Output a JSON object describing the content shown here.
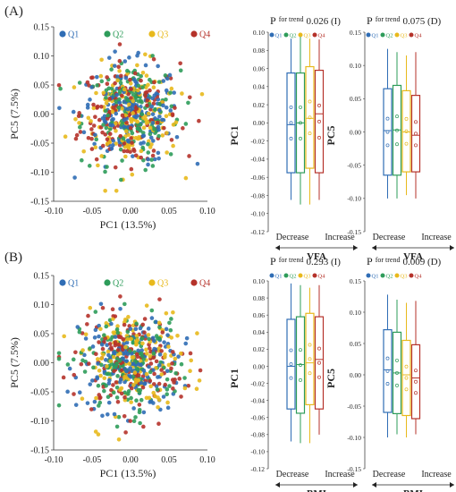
{
  "colors": {
    "Q1": "#2f6db5",
    "Q2": "#2e9c5a",
    "Q3": "#e8b91c",
    "Q4": "#b5322a"
  },
  "chart_data": [
    {
      "panel_label": "(A)",
      "type": "scatter",
      "xlabel": "PC1 (13.5%)",
      "ylabel": "PC5 (7.5%)",
      "xlim": [
        -0.1,
        0.1
      ],
      "ylim": [
        -0.15,
        0.15
      ],
      "xticks": [
        "-0.10",
        "-0.05",
        "0.00",
        "0.05",
        "0.10"
      ],
      "yticks": [
        "0.15",
        "0.10",
        "0.05",
        "0.00",
        "-0.05",
        "-0.10",
        "-0.15"
      ],
      "legend": [
        "Q1",
        "Q2",
        "Q3",
        "Q4"
      ],
      "legend_position": "top",
      "spread": {
        "sx": 0.032,
        "sy": 0.043
      }
    },
    {
      "panel_label": "",
      "type": "box",
      "ylabel": "PC1",
      "xlabel": "VFA",
      "group_labels": [
        "Decrease",
        "Increase"
      ],
      "p_prefix": "P",
      "p_super": "for trend",
      "p_value": "0.026 (I)",
      "legend": [
        "Q1",
        "Q2",
        "Q3",
        "Q4"
      ],
      "ylim": [
        -0.12,
        0.1
      ],
      "yticks": [
        "0.10",
        "0.08",
        "0.06",
        "0.04",
        "0.02",
        "0.00",
        "-0.02",
        "-0.04",
        "-0.06",
        "-0.08",
        "-0.10",
        "-0.12"
      ],
      "boxes": [
        {
          "name": "Q1",
          "whisker_low": -0.085,
          "q1": -0.055,
          "median": -0.002,
          "q3": 0.055,
          "whisker_high": 0.093
        },
        {
          "name": "Q2",
          "whisker_low": -0.09,
          "q1": -0.055,
          "median": 0.0,
          "q3": 0.055,
          "whisker_high": 0.095
        },
        {
          "name": "Q3",
          "whisker_low": -0.09,
          "q1": -0.05,
          "median": 0.005,
          "q3": 0.062,
          "whisker_high": 0.093
        },
        {
          "name": "Q4",
          "whisker_low": -0.085,
          "q1": -0.055,
          "median": 0.01,
          "q3": 0.058,
          "whisker_high": 0.092
        }
      ]
    },
    {
      "panel_label": "",
      "type": "box",
      "ylabel": "PC5",
      "xlabel": "VFA",
      "group_labels": [
        "Decrease",
        "Increase"
      ],
      "p_prefix": "P",
      "p_super": "for trend",
      "p_value": "0.075 (D)",
      "legend": [
        "Q1",
        "Q2",
        "Q3",
        "Q4"
      ],
      "ylim": [
        -0.15,
        0.15
      ],
      "yticks": [
        "0.15",
        "0.10",
        "0.05",
        "0.00",
        "-0.05",
        "-0.10",
        "-0.15"
      ],
      "boxes": [
        {
          "name": "Q1",
          "whisker_low": -0.1,
          "q1": -0.065,
          "median": 0.002,
          "q3": 0.065,
          "whisker_high": 0.125
        },
        {
          "name": "Q2",
          "whisker_low": -0.1,
          "q1": -0.065,
          "median": 0.003,
          "q3": 0.07,
          "whisker_high": 0.12
        },
        {
          "name": "Q3",
          "whisker_low": -0.095,
          "q1": -0.06,
          "median": 0.0,
          "q3": 0.062,
          "whisker_high": 0.115
        },
        {
          "name": "Q4",
          "whisker_low": -0.1,
          "q1": -0.06,
          "median": -0.005,
          "q3": 0.055,
          "whisker_high": 0.12
        }
      ]
    },
    {
      "panel_label": "(B)",
      "type": "scatter",
      "xlabel": "PC1 (13.5%)",
      "ylabel": "PC5 (7.5%)",
      "xlim": [
        -0.1,
        0.1
      ],
      "ylim": [
        -0.15,
        0.15
      ],
      "xticks": [
        "-0.10",
        "-0.05",
        "0.00",
        "0.05",
        "0.10"
      ],
      "yticks": [
        "0.15",
        "0.10",
        "0.05",
        "0.00",
        "-0.05",
        "-0.10",
        "-0.15"
      ],
      "legend": [
        "Q1",
        "Q2",
        "Q3",
        "Q4"
      ],
      "legend_position": "top",
      "spread": {
        "sx": 0.033,
        "sy": 0.042
      }
    },
    {
      "panel_label": "",
      "type": "box",
      "ylabel": "PC1",
      "xlabel": "BMI",
      "group_labels": [
        "Decrease",
        "Increase"
      ],
      "p_prefix": "P",
      "p_super": "for trend",
      "p_value": "0.293 (I)",
      "legend": [
        "Q1",
        "Q2",
        "Q3",
        "Q4"
      ],
      "ylim": [
        -0.12,
        0.1
      ],
      "yticks": [
        "0.10",
        "0.08",
        "0.06",
        "0.04",
        "0.02",
        "0.00",
        "-0.02",
        "-0.04",
        "-0.06",
        "-0.08",
        "-0.10",
        "-0.12"
      ],
      "boxes": [
        {
          "name": "Q1",
          "whisker_low": -0.088,
          "q1": -0.05,
          "median": 0.0,
          "q3": 0.055,
          "whisker_high": 0.097
        },
        {
          "name": "Q2",
          "whisker_low": -0.09,
          "q1": -0.055,
          "median": 0.002,
          "q3": 0.058,
          "whisker_high": 0.095
        },
        {
          "name": "Q3",
          "whisker_low": -0.09,
          "q1": -0.045,
          "median": 0.004,
          "q3": 0.062,
          "whisker_high": 0.092
        },
        {
          "name": "Q4",
          "whisker_low": -0.08,
          "q1": -0.05,
          "median": 0.008,
          "q3": 0.058,
          "whisker_high": 0.095
        }
      ]
    },
    {
      "panel_label": "",
      "type": "box",
      "ylabel": "PC5",
      "xlabel": "BMI",
      "group_labels": [
        "Decrease",
        "Increase"
      ],
      "p_prefix": "P",
      "p_super": "for trend",
      "p_value": "0.009 (D)",
      "legend": [
        "Q1",
        "Q2",
        "Q3",
        "Q4"
      ],
      "ylim": [
        -0.15,
        0.15
      ],
      "yticks": [
        "0.15",
        "0.10",
        "0.05",
        "0.00",
        "-0.05",
        "-0.10",
        "-0.15"
      ],
      "boxes": [
        {
          "name": "Q1",
          "whisker_low": -0.1,
          "q1": -0.06,
          "median": 0.008,
          "q3": 0.072,
          "whisker_high": 0.128
        },
        {
          "name": "Q2",
          "whisker_low": -0.095,
          "q1": -0.062,
          "median": 0.003,
          "q3": 0.068,
          "whisker_high": 0.12
        },
        {
          "name": "Q3",
          "whisker_low": -0.1,
          "q1": -0.065,
          "median": 0.0,
          "q3": 0.055,
          "whisker_high": 0.115
        },
        {
          "name": "Q4",
          "whisker_low": -0.095,
          "q1": -0.07,
          "median": -0.005,
          "q3": 0.048,
          "whisker_high": 0.118
        }
      ]
    }
  ]
}
